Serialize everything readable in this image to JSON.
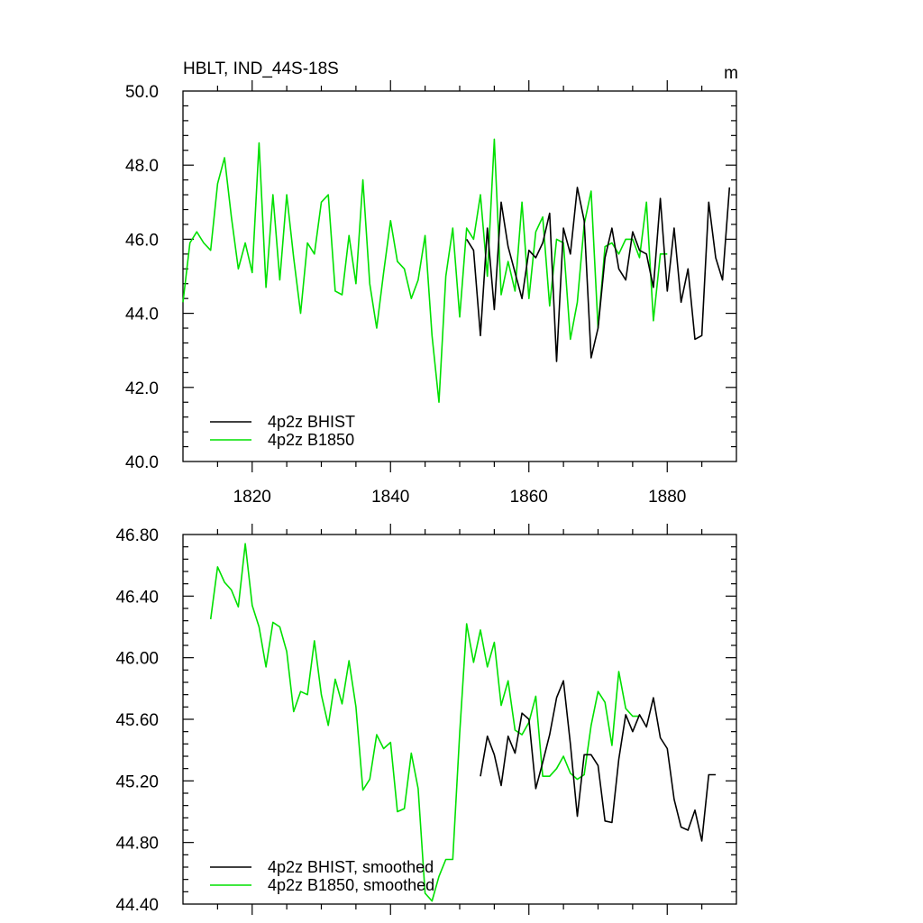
{
  "figure": {
    "title": "HBLT, IND_44S-18S",
    "units": "m"
  },
  "chart_data": [
    {
      "type": "line",
      "title": "HBLT, IND_44S-18S",
      "xlabel": "",
      "ylabel": "",
      "xlim": [
        1810,
        1890
      ],
      "ylim": [
        40.0,
        50.0
      ],
      "x_ticks": [
        "1820",
        "1840",
        "1860",
        "1880"
      ],
      "y_ticks": [
        "40.0",
        "42.0",
        "44.0",
        "46.0",
        "48.0",
        "50.0"
      ],
      "grid": false,
      "legend_position": "bottom-left",
      "series": [
        {
          "name": "4p2z BHIST",
          "color": "#000000",
          "x": [
            1851,
            1852,
            1853,
            1854,
            1855,
            1856,
            1857,
            1858,
            1859,
            1860,
            1861,
            1862,
            1863,
            1864,
            1865,
            1866,
            1867,
            1868,
            1869,
            1870,
            1871,
            1872,
            1873,
            1874,
            1875,
            1876,
            1877,
            1878,
            1879,
            1880,
            1881,
            1882,
            1883,
            1884,
            1885,
            1886,
            1887,
            1888,
            1889
          ],
          "y": [
            46.0,
            45.7,
            43.4,
            46.3,
            44.1,
            47.0,
            45.8,
            45.1,
            44.4,
            45.7,
            45.5,
            45.9,
            46.7,
            42.7,
            46.3,
            45.6,
            47.4,
            46.5,
            42.8,
            43.6,
            45.5,
            46.3,
            45.2,
            44.9,
            46.2,
            45.7,
            45.6,
            44.7,
            47.1,
            44.6,
            46.3,
            44.3,
            45.2,
            43.3,
            43.4,
            47.0,
            45.5,
            44.9,
            47.4
          ]
        },
        {
          "name": "4p2z B1850",
          "color": "#00e000",
          "x": [
            1810,
            1811,
            1812,
            1813,
            1814,
            1815,
            1816,
            1817,
            1818,
            1819,
            1820,
            1821,
            1822,
            1823,
            1824,
            1825,
            1826,
            1827,
            1828,
            1829,
            1830,
            1831,
            1832,
            1833,
            1834,
            1835,
            1836,
            1837,
            1838,
            1839,
            1840,
            1841,
            1842,
            1843,
            1844,
            1845,
            1846,
            1847,
            1848,
            1849,
            1850,
            1851,
            1852,
            1853,
            1854,
            1855,
            1856,
            1857,
            1858,
            1859,
            1860,
            1861,
            1862,
            1863,
            1864,
            1865,
            1866,
            1867,
            1868,
            1869,
            1870,
            1871,
            1872,
            1873,
            1874,
            1875,
            1876,
            1877,
            1878,
            1879,
            1880
          ],
          "y": [
            44.3,
            45.9,
            46.2,
            45.9,
            45.7,
            47.5,
            48.2,
            46.6,
            45.2,
            45.9,
            45.1,
            48.6,
            44.7,
            47.2,
            44.9,
            47.2,
            45.5,
            44.0,
            45.9,
            45.6,
            47.0,
            47.2,
            44.6,
            44.5,
            46.1,
            44.8,
            47.6,
            44.8,
            43.6,
            45.1,
            46.5,
            45.4,
            45.2,
            44.4,
            44.9,
            46.1,
            43.4,
            41.6,
            45.0,
            46.3,
            43.9,
            46.3,
            46.0,
            47.2,
            45.0,
            48.7,
            44.5,
            45.4,
            44.6,
            47.0,
            44.4,
            46.2,
            46.6,
            44.2,
            46.0,
            45.9,
            43.3,
            44.3,
            46.4,
            47.3,
            43.6,
            45.8,
            45.9,
            45.6,
            46.0,
            46.0,
            45.5,
            47.0,
            43.8,
            45.6,
            45.6
          ]
        }
      ]
    },
    {
      "type": "line",
      "title": "",
      "xlabel": "",
      "ylabel": "",
      "xlim": [
        1810,
        1890
      ],
      "ylim": [
        44.4,
        46.8
      ],
      "x_ticks": [],
      "y_ticks": [
        "44.40",
        "44.80",
        "45.20",
        "45.60",
        "46.00",
        "46.40",
        "46.80"
      ],
      "grid": false,
      "legend_position": "bottom-left",
      "series": [
        {
          "name": "4p2z BHIST, smoothed",
          "color": "#000000",
          "x": [
            1853,
            1854,
            1855,
            1856,
            1857,
            1858,
            1859,
            1860,
            1861,
            1862,
            1863,
            1864,
            1865,
            1866,
            1867,
            1868,
            1869,
            1870,
            1871,
            1872,
            1873,
            1874,
            1875,
            1876,
            1877,
            1878,
            1879,
            1880,
            1881,
            1882,
            1883,
            1884,
            1885,
            1886,
            1887
          ],
          "y": [
            45.23,
            45.49,
            45.37,
            45.17,
            45.49,
            45.38,
            45.64,
            45.6,
            45.15,
            45.32,
            45.5,
            45.74,
            45.85,
            45.44,
            44.97,
            45.37,
            45.37,
            45.3,
            44.94,
            44.93,
            45.34,
            45.63,
            45.52,
            45.63,
            45.55,
            45.74,
            45.48,
            45.41,
            45.08,
            44.9,
            44.88,
            45.01,
            44.81,
            45.24,
            45.24
          ]
        },
        {
          "name": "4p2z B1850, smoothed",
          "color": "#00e000",
          "x": [
            1814,
            1815,
            1816,
            1817,
            1818,
            1819,
            1820,
            1821,
            1822,
            1823,
            1824,
            1825,
            1826,
            1827,
            1828,
            1829,
            1830,
            1831,
            1832,
            1833,
            1834,
            1835,
            1836,
            1837,
            1838,
            1839,
            1840,
            1841,
            1842,
            1843,
            1844,
            1845,
            1846,
            1847,
            1848,
            1849,
            1850,
            1851,
            1852,
            1853,
            1854,
            1855,
            1856,
            1857,
            1858,
            1859,
            1860,
            1861,
            1862,
            1863,
            1864,
            1865,
            1866,
            1867,
            1868,
            1869,
            1870,
            1871,
            1872,
            1873,
            1874,
            1875,
            1876
          ],
          "y": [
            46.25,
            46.59,
            46.49,
            46.44,
            46.33,
            46.74,
            46.34,
            46.2,
            45.94,
            46.23,
            46.2,
            46.04,
            45.65,
            45.78,
            45.76,
            46.11,
            45.76,
            45.56,
            45.86,
            45.7,
            45.98,
            45.68,
            45.14,
            45.21,
            45.5,
            45.41,
            45.45,
            45.0,
            45.02,
            45.38,
            45.15,
            44.47,
            44.42,
            44.58,
            44.69,
            44.69,
            45.51,
            46.22,
            45.97,
            46.18,
            45.94,
            46.1,
            45.69,
            45.85,
            45.53,
            45.5,
            45.58,
            45.75,
            45.23,
            45.23,
            45.28,
            45.36,
            45.25,
            45.21,
            45.24,
            45.56,
            45.78,
            45.71,
            45.43,
            45.91,
            45.67,
            45.62,
            45.62
          ]
        }
      ]
    }
  ]
}
